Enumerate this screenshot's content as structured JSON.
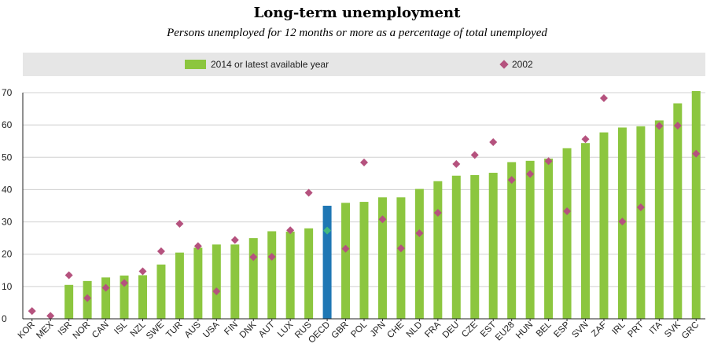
{
  "chart_data": {
    "type": "bar",
    "title": "Long-term unemployment",
    "subtitle": "Persons unemployed for 12 months or more as a percentage of total unemployed",
    "xlabel": "",
    "ylabel": "",
    "ylim": [
      0,
      70
    ],
    "yticks": [
      0,
      10,
      20,
      30,
      40,
      50,
      60,
      70
    ],
    "grid": true,
    "legend_position": "top",
    "categories": [
      "KOR",
      "MEX",
      "ISR",
      "NOR",
      "CAN",
      "ISL",
      "NZL",
      "SWE",
      "TUR",
      "AUS",
      "USA",
      "FIN",
      "DNK",
      "AUT",
      "LUX",
      "RUS",
      "OECD",
      "GBR",
      "POL",
      "JPN",
      "CHE",
      "NLD",
      "FRA",
      "DEU",
      "CZE",
      "EST",
      "EU28",
      "HUN",
      "BEL",
      "ESP",
      "SVN",
      "ZAF",
      "IRL",
      "PRT",
      "ITA",
      "SVK",
      "GRC"
    ],
    "highlight_category": "OECD",
    "series": [
      {
        "name": "2014 or latest available year",
        "kind": "bar",
        "values": [
          0,
          0,
          10.5,
          11.7,
          12.8,
          13.4,
          13.5,
          16.8,
          20.5,
          22.0,
          23.0,
          23.0,
          25.0,
          27.1,
          27.0,
          28.0,
          35.0,
          35.9,
          36.2,
          37.6,
          37.6,
          40.2,
          42.6,
          44.3,
          44.5,
          45.2,
          48.5,
          48.9,
          49.6,
          52.8,
          54.4,
          57.7,
          59.2,
          59.6,
          61.4,
          66.7,
          73.5
        ]
      },
      {
        "name": "2002",
        "kind": "marker",
        "values": [
          2.4,
          0.9,
          13.5,
          6.4,
          9.6,
          11.1,
          14.7,
          20.9,
          29.4,
          22.5,
          8.5,
          24.4,
          19.1,
          19.2,
          27.4,
          39.0,
          27.3,
          21.7,
          48.4,
          30.8,
          21.8,
          26.5,
          32.8,
          47.9,
          50.7,
          54.7,
          43.0,
          44.8,
          48.8,
          33.3,
          55.6,
          68.3,
          30.1,
          34.5,
          59.7,
          59.8,
          51.1
        ]
      }
    ]
  },
  "colors": {
    "bar": "#8cc63f",
    "bar_highlight": "#1f77b4",
    "marker": "#b5527e",
    "marker_highlight": "#43b97d",
    "grid": "#d0d0d0",
    "legend_bg": "#e6e6e6"
  }
}
